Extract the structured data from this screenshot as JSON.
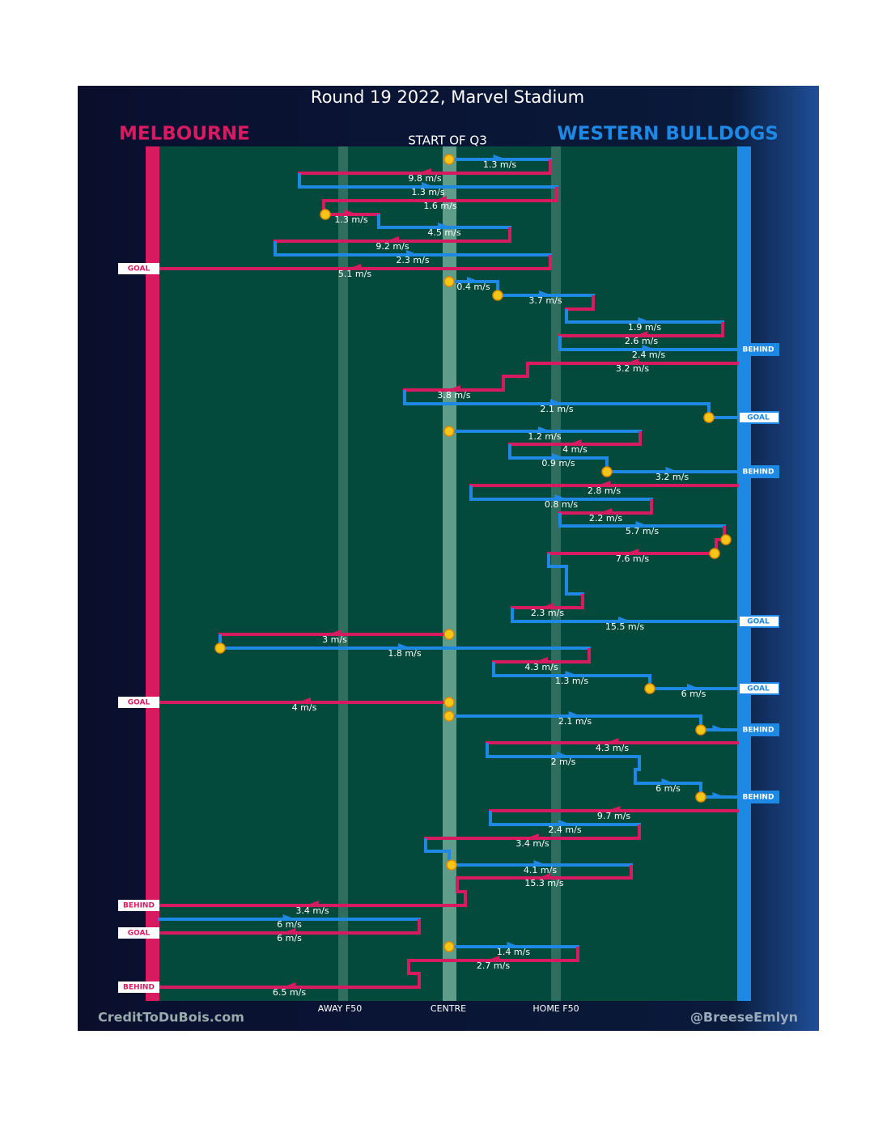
{
  "title": "Round 19 2022, Marvel Stadium",
  "teams": {
    "home": "MELBOURNE",
    "away": "WESTERN BULLDOGS"
  },
  "period": "START OF Q3",
  "speeds": [
    "1.3 m/s",
    "9.8 m/s",
    "1.3 m/s",
    "1.6 m/s",
    "1.3 m/s",
    "4.5 m/s",
    "9.2 m/s",
    "2.3 m/s",
    "5.1 m/s",
    "0.4 m/s",
    "3.7 m/s",
    "1.9 m/s",
    "2.6 m/s",
    "2.4 m/s",
    "3.2 m/s",
    "3.8 m/s",
    "2.1 m/s",
    "1.2 m/s",
    "4 m/s",
    "0.9 m/s",
    "3.2 m/s",
    "2.8 m/s",
    "0.8 m/s",
    "2.2 m/s",
    "5.7 m/s",
    "7.6 m/s",
    "2.3 m/s",
    "15.5 m/s",
    "3 m/s",
    "1.8 m/s",
    "4.3 m/s",
    "1.3 m/s",
    "6 m/s",
    "4 m/s",
    "2.1 m/s",
    "4.3 m/s",
    "2 m/s",
    "6 m/s",
    "9.7 m/s",
    "2.4 m/s",
    "3.4 m/s",
    "4.1 m/s",
    "15.3 m/s",
    "3.4 m/s",
    "6 m/s",
    "6 m/s",
    "1.4 m/s",
    "2.7 m/s",
    "6.5 m/s"
  ],
  "outcomes_left": [
    "GOAL",
    "GOAL",
    "BEHIND",
    "GOAL",
    "BEHIND"
  ],
  "outcomes_right": [
    "BEHIND",
    "GOAL",
    "BEHIND",
    "GOAL",
    "GOAL",
    "BEHIND",
    "BEHIND"
  ],
  "zones": [
    "AWAY F50",
    "CENTRE",
    "HOME F50"
  ],
  "credits": {
    "left": "CreditToDuBois.com",
    "right": "@BreeseEmlyn"
  }
}
